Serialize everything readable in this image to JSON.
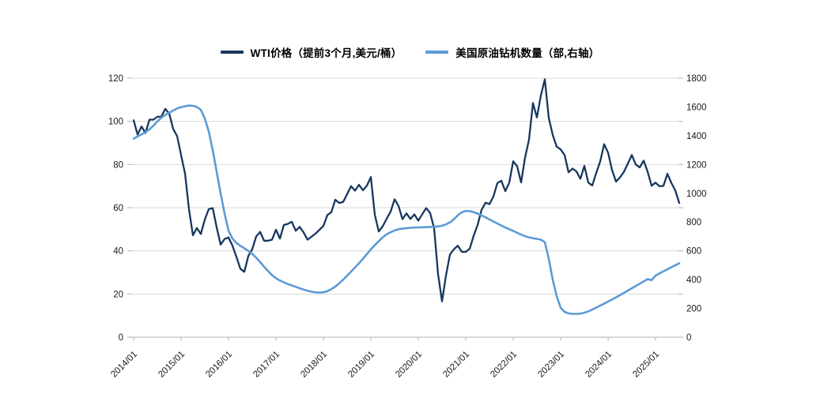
{
  "chart_data": {
    "type": "line",
    "title": "",
    "grid": "horizontal",
    "background": "#ffffff",
    "legend_position": "top",
    "x_start": "2014/01",
    "x_interval": "monthly",
    "xticks": [
      "2014/01",
      "2015/01",
      "2016/01",
      "2017/01",
      "2018/01",
      "2019/01",
      "2020/01",
      "2021/01",
      "2022/01",
      "2023/01",
      "2024/01",
      "2025/01"
    ],
    "left_axis": {
      "min": 0,
      "max": 120,
      "step": 20,
      "ticks": [
        0,
        20,
        40,
        60,
        80,
        100,
        120
      ]
    },
    "right_axis": {
      "min": 0,
      "max": 1800,
      "step": 200,
      "ticks": [
        0,
        200,
        400,
        600,
        800,
        1000,
        1200,
        1400,
        1600,
        1800
      ]
    },
    "colors": {
      "grid": "#d9d9d9",
      "axis": "#bfbfbf",
      "text": "#1a1a1a"
    },
    "series": [
      {
        "name": "WTI价格（提前3个月,美元/桶）",
        "axis": "left",
        "color": "#17375e",
        "line_width": 2.3,
        "values": [
          100.5,
          93.9,
          97.6,
          94.6,
          100.8,
          100.8,
          102.1,
          102.2,
          105.8,
          103.6,
          96.5,
          93.2,
          84.4,
          75.8,
          59.3,
          47.2,
          50.6,
          47.8,
          54.5,
          59.3,
          59.8,
          50.9,
          42.9,
          45.5,
          46.2,
          42.4,
          37.2,
          31.7,
          30.3,
          37.6,
          40.8,
          46.7,
          48.8,
          44.7,
          44.7,
          45.2,
          49.8,
          45.7,
          52.0,
          52.5,
          53.5,
          49.3,
          51.1,
          48.5,
          45.2,
          46.6,
          48.0,
          49.8,
          51.6,
          56.6,
          57.9,
          63.7,
          62.2,
          62.7,
          66.3,
          70.0,
          67.9,
          70.6,
          68.1,
          70.2,
          74.2,
          56.7,
          49.0,
          51.4,
          54.9,
          58.2,
          63.9,
          60.8,
          54.7,
          57.4,
          54.8,
          56.9,
          54.0,
          57.0,
          59.8,
          57.5,
          50.5,
          29.2,
          16.6,
          28.6,
          38.3,
          40.8,
          42.4,
          39.6,
          39.5,
          41.0,
          47.0,
          52.0,
          59.0,
          62.3,
          61.7,
          65.2,
          71.4,
          72.5,
          67.7,
          71.6,
          81.5,
          79.2,
          71.7,
          83.2,
          91.6,
          108.5,
          101.8,
          112.0,
          119.5,
          101.6,
          93.7,
          88.3,
          87.0,
          84.4,
          76.4,
          78.1,
          76.8,
          73.4,
          79.4,
          71.6,
          70.3,
          76.1,
          81.4,
          89.4,
          85.5,
          77.4,
          72.1,
          74.0,
          76.6,
          80.4,
          84.4,
          80.0,
          78.7,
          81.8,
          76.7,
          70.2,
          71.6,
          69.9,
          70.1,
          75.7,
          71.5,
          68.0,
          62.2
        ]
      },
      {
        "name": "美国原油钻机数量（部,右轴）",
        "axis": "right",
        "color": "#5b9bd5",
        "line_width": 2.6,
        "values": [
          1380,
          1395,
          1410,
          1425,
          1445,
          1470,
          1500,
          1525,
          1545,
          1560,
          1575,
          1590,
          1598,
          1605,
          1610,
          1608,
          1600,
          1580,
          1520,
          1430,
          1300,
          1150,
          1000,
          860,
          740,
          685,
          655,
          635,
          618,
          600,
          580,
          552,
          522,
          490,
          460,
          432,
          410,
          394,
          382,
          370,
          360,
          350,
          340,
          331,
          323,
          316,
          312,
          310,
          312,
          320,
          334,
          352,
          375,
          400,
          428,
          456,
          485,
          515,
          545,
          578,
          610,
          640,
          668,
          694,
          715,
          730,
          742,
          750,
          755,
          758,
          760,
          762,
          763,
          764,
          765,
          766,
          768,
          770,
          775,
          784,
          798,
          820,
          848,
          868,
          878,
          876,
          869,
          859,
          847,
          833,
          819,
          804,
          790,
          776,
          763,
          751,
          739,
          726,
          713,
          702,
          694,
          688,
          683,
          678,
          660,
          545,
          400,
          285,
          205,
          176,
          166,
          163,
          162,
          164,
          170,
          180,
          192,
          206,
          220,
          234,
          248,
          262,
          277,
          292,
          308,
          324,
          340,
          356,
          372,
          388,
          404,
          396,
          428,
          444,
          458,
          472,
          486,
          500,
          514
        ]
      }
    ]
  }
}
